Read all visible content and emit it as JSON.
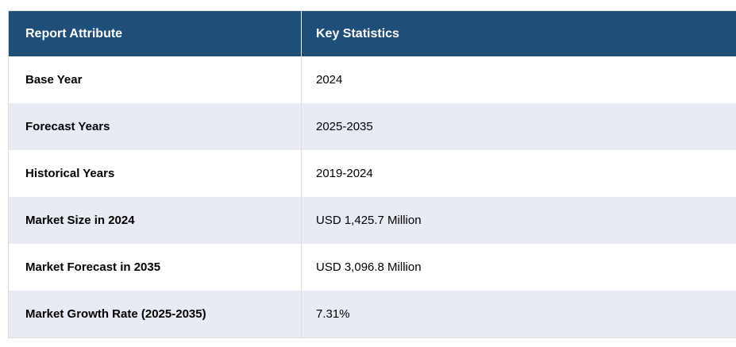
{
  "table": {
    "columns": [
      {
        "label": "Report Attribute"
      },
      {
        "label": "Key Statistics"
      }
    ],
    "rows": [
      {
        "attribute": "Base Year",
        "value": "2024"
      },
      {
        "attribute": "Forecast Years",
        "value": "2025-2035"
      },
      {
        "attribute": "Historical Years",
        "value": "2019-2024"
      },
      {
        "attribute": "Market Size in 2024",
        "value": "USD 1,425.7 Million"
      },
      {
        "attribute": "Market Forecast in 2035",
        "value": "USD 3,096.8 Million"
      },
      {
        "attribute": "Market Growth Rate (2025-2035)",
        "value": "7.31%"
      }
    ],
    "colors": {
      "header_bg": "#1F4E79",
      "header_text": "#FFFFFF",
      "row_bg": "#FFFFFF",
      "row_alt_bg": "#E8EAF4",
      "border": "#DDDDDD",
      "text": "#000000"
    }
  }
}
